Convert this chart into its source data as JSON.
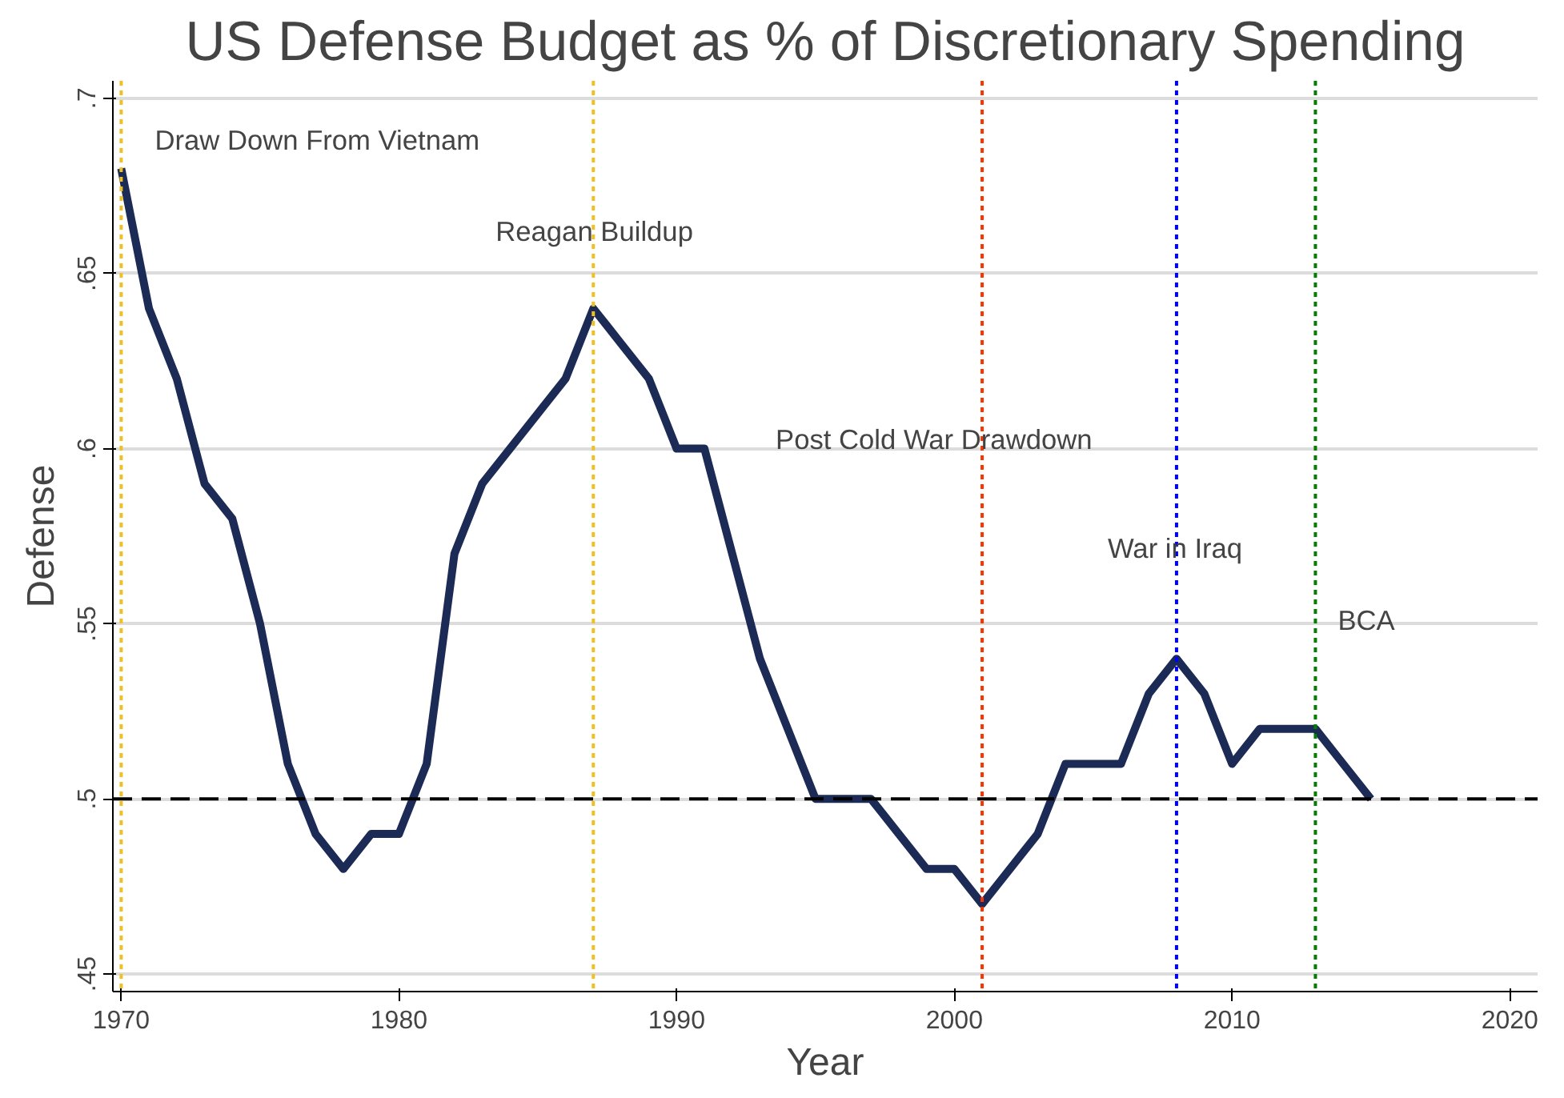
{
  "chart_data": {
    "type": "line",
    "title": "US Defense Budget as % of Discretionary Spending",
    "xlabel": "Year",
    "ylabel": "Defense",
    "x": [
      1970,
      1971,
      1972,
      1973,
      1974,
      1975,
      1976,
      1977,
      1978,
      1979,
      1980,
      1981,
      1982,
      1983,
      1984,
      1985,
      1986,
      1987,
      1988,
      1989,
      1990,
      1991,
      1992,
      1993,
      1994,
      1995,
      1996,
      1997,
      1998,
      1999,
      2000,
      2001,
      2002,
      2003,
      2004,
      2005,
      2006,
      2007,
      2008,
      2009,
      2010,
      2011,
      2012,
      2013,
      2014,
      2015
    ],
    "series": [
      {
        "color": "#1c2b55",
        "values": [
          0.68,
          0.64,
          0.62,
          0.59,
          0.58,
          0.55,
          0.51,
          0.49,
          0.48,
          0.49,
          0.49,
          0.51,
          0.57,
          0.59,
          0.6,
          0.61,
          0.62,
          0.64,
          0.63,
          0.62,
          0.6,
          0.6,
          0.57,
          0.54,
          0.52,
          0.5,
          0.5,
          0.5,
          0.49,
          0.48,
          0.48,
          0.47,
          0.48,
          0.49,
          0.51,
          0.51,
          0.51,
          0.53,
          0.54,
          0.53,
          0.51,
          0.52,
          0.52,
          0.52,
          0.51,
          0.5
        ]
      }
    ],
    "xlim": [
      1969.7,
      2021
    ],
    "ylim": [
      0.445,
      0.705
    ],
    "xticks": [
      1970,
      1980,
      1990,
      2000,
      2010,
      2020
    ],
    "yticks": [
      {
        "value": 0.45,
        "label": ".45"
      },
      {
        "value": 0.5,
        "label": ".5"
      },
      {
        "value": 0.55,
        "label": ".55"
      },
      {
        "value": 0.6,
        "label": ".6"
      },
      {
        "value": 0.65,
        "label": ".65"
      },
      {
        "value": 0.7,
        "label": ".7"
      }
    ],
    "grid": "y",
    "line_style": "solid",
    "marker": "none",
    "ref_lines": [
      {
        "axis": "y",
        "value": 0.5,
        "color": "#000000",
        "line_style": "dashed"
      },
      {
        "axis": "x",
        "value": 1970,
        "color": "#f0c020",
        "line_style": "dotted"
      },
      {
        "axis": "x",
        "value": 1987,
        "color": "#f0c020",
        "line_style": "dotted"
      },
      {
        "axis": "x",
        "value": 2001,
        "color": "#ff3300",
        "line_style": "dotted"
      },
      {
        "axis": "x",
        "value": 2008,
        "color": "#0000ff",
        "line_style": "dotted"
      },
      {
        "axis": "x",
        "value": 2013,
        "color": "#008000",
        "line_style": "dotted"
      }
    ],
    "annotations": [
      "Draw Down From Vietnam",
      "Reagan Buildup",
      "Post Cold War Drawdown",
      "War in Iraq",
      "BCA"
    ]
  }
}
